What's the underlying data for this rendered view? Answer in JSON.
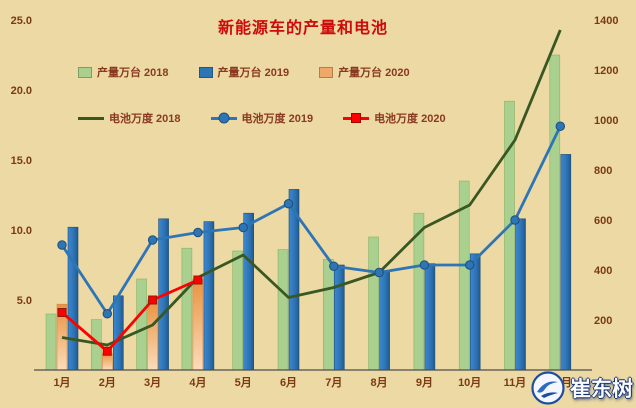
{
  "title": "新能源车的产量和电池",
  "colors": {
    "background": "#ecd9a4",
    "title": "#cf0a0a",
    "legend_text": "#8a3a20",
    "axis_text": "#7b3a12",
    "axis_line": "#4d4d4d",
    "bar_2018": "#a9d08e",
    "bar_2019": "#2e75b6",
    "bar_2020": "#f0a868",
    "line_2018": "#385723",
    "line_2019": "#2e75b6",
    "line_2020": "#ff0000",
    "watermark_navy": "#15316f"
  },
  "legend": {
    "items": [
      {
        "label": "产量万台 2018",
        "swatch": "bar",
        "color": "#a9d08e"
      },
      {
        "label": "产量万台 2019",
        "swatch": "bar",
        "color": "#2e75b6"
      },
      {
        "label": "产量万台 2020",
        "swatch": "bar",
        "color": "#f0a868"
      },
      {
        "label": "电池万度 2018",
        "swatch": "line",
        "color": "#385723"
      },
      {
        "label": "电池万度 2019",
        "swatch": "line-circle",
        "color": "#2e75b6"
      },
      {
        "label": "电池万度 2020",
        "swatch": "line-square",
        "color": "#ff0000"
      }
    ]
  },
  "watermark": {
    "text": "崔东树"
  },
  "chart_data": {
    "type": "combo-bar-line",
    "title": "新能源车的产量和电池",
    "categories": [
      "1月",
      "2月",
      "3月",
      "4月",
      "5月",
      "6月",
      "7月",
      "8月",
      "9月",
      "10月",
      "11月",
      "12月"
    ],
    "left_axis": {
      "ticks": [
        5,
        10,
        15,
        20,
        25
      ],
      "tick_labels": [
        "5.0",
        "10.0",
        "15.0",
        "20.0",
        "25.0"
      ],
      "min": 0,
      "max": 25
    },
    "right_axis": {
      "ticks": [
        200,
        400,
        600,
        800,
        1000,
        1200,
        1400
      ],
      "min": 0,
      "max": 1400
    },
    "legend_position": "top-left, two rows",
    "grid": false,
    "bar_series": [
      {
        "name": "产量万台 2018",
        "axis": "left",
        "color": "#a9d08e",
        "values": [
          4.0,
          3.6,
          6.5,
          8.7,
          8.5,
          8.6,
          7.9,
          9.5,
          11.2,
          13.5,
          19.2,
          22.5
        ]
      },
      {
        "name": "产量万台 2019",
        "axis": "left",
        "color": "#2e75b6",
        "values": [
          10.2,
          5.3,
          10.8,
          10.6,
          11.2,
          12.9,
          7.5,
          7.1,
          7.6,
          8.3,
          10.8,
          15.4
        ]
      },
      {
        "name": "产量万台 2020",
        "axis": "left",
        "color": "#f0a868",
        "values": [
          4.7,
          1.2,
          5.0,
          6.5,
          null,
          null,
          null,
          null,
          null,
          null,
          null,
          null
        ]
      }
    ],
    "line_series": [
      {
        "name": "电池万度 2018",
        "axis": "right",
        "color": "#385723",
        "marker": "none",
        "values": [
          130,
          100,
          180,
          370,
          460,
          290,
          330,
          390,
          570,
          660,
          920,
          1360
        ]
      },
      {
        "name": "电池万度 2019",
        "axis": "right",
        "color": "#2e75b6",
        "marker": "circle",
        "values": [
          500,
          225,
          520,
          550,
          570,
          665,
          415,
          390,
          420,
          420,
          600,
          975
        ]
      },
      {
        "name": "电池万度 2020",
        "axis": "right",
        "color": "#ff0000",
        "marker": "square",
        "values": [
          230,
          75,
          280,
          360,
          null,
          null,
          null,
          null,
          null,
          null,
          null,
          null
        ]
      }
    ]
  }
}
